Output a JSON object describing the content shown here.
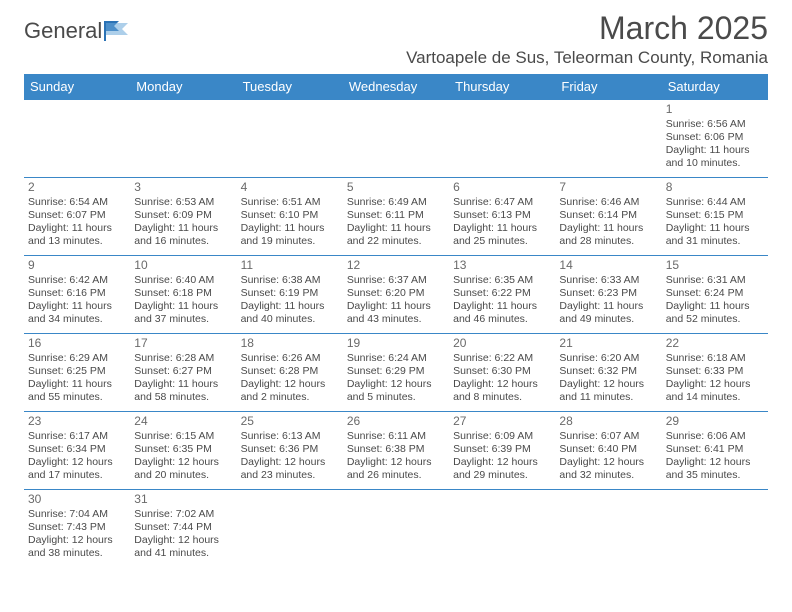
{
  "logo": {
    "text": "General",
    "brand_color": "#2a72b5"
  },
  "title": {
    "month": "March 2025",
    "location": "Vartoapele de Sus, Teleorman County, Romania"
  },
  "colors": {
    "header_bg": "#3a87c7",
    "header_fg": "#ffffff",
    "border": "#3a87c7",
    "text": "#4a4a4a"
  },
  "weekdays": [
    "Sunday",
    "Monday",
    "Tuesday",
    "Wednesday",
    "Thursday",
    "Friday",
    "Saturday"
  ],
  "weeks": [
    [
      null,
      null,
      null,
      null,
      null,
      null,
      {
        "d": "1",
        "sunrise": "6:56 AM",
        "sunset": "6:06 PM",
        "daylight": "11 hours and 10 minutes."
      }
    ],
    [
      {
        "d": "2",
        "sunrise": "6:54 AM",
        "sunset": "6:07 PM",
        "daylight": "11 hours and 13 minutes."
      },
      {
        "d": "3",
        "sunrise": "6:53 AM",
        "sunset": "6:09 PM",
        "daylight": "11 hours and 16 minutes."
      },
      {
        "d": "4",
        "sunrise": "6:51 AM",
        "sunset": "6:10 PM",
        "daylight": "11 hours and 19 minutes."
      },
      {
        "d": "5",
        "sunrise": "6:49 AM",
        "sunset": "6:11 PM",
        "daylight": "11 hours and 22 minutes."
      },
      {
        "d": "6",
        "sunrise": "6:47 AM",
        "sunset": "6:13 PM",
        "daylight": "11 hours and 25 minutes."
      },
      {
        "d": "7",
        "sunrise": "6:46 AM",
        "sunset": "6:14 PM",
        "daylight": "11 hours and 28 minutes."
      },
      {
        "d": "8",
        "sunrise": "6:44 AM",
        "sunset": "6:15 PM",
        "daylight": "11 hours and 31 minutes."
      }
    ],
    [
      {
        "d": "9",
        "sunrise": "6:42 AM",
        "sunset": "6:16 PM",
        "daylight": "11 hours and 34 minutes."
      },
      {
        "d": "10",
        "sunrise": "6:40 AM",
        "sunset": "6:18 PM",
        "daylight": "11 hours and 37 minutes."
      },
      {
        "d": "11",
        "sunrise": "6:38 AM",
        "sunset": "6:19 PM",
        "daylight": "11 hours and 40 minutes."
      },
      {
        "d": "12",
        "sunrise": "6:37 AM",
        "sunset": "6:20 PM",
        "daylight": "11 hours and 43 minutes."
      },
      {
        "d": "13",
        "sunrise": "6:35 AM",
        "sunset": "6:22 PM",
        "daylight": "11 hours and 46 minutes."
      },
      {
        "d": "14",
        "sunrise": "6:33 AM",
        "sunset": "6:23 PM",
        "daylight": "11 hours and 49 minutes."
      },
      {
        "d": "15",
        "sunrise": "6:31 AM",
        "sunset": "6:24 PM",
        "daylight": "11 hours and 52 minutes."
      }
    ],
    [
      {
        "d": "16",
        "sunrise": "6:29 AM",
        "sunset": "6:25 PM",
        "daylight": "11 hours and 55 minutes."
      },
      {
        "d": "17",
        "sunrise": "6:28 AM",
        "sunset": "6:27 PM",
        "daylight": "11 hours and 58 minutes."
      },
      {
        "d": "18",
        "sunrise": "6:26 AM",
        "sunset": "6:28 PM",
        "daylight": "12 hours and 2 minutes."
      },
      {
        "d": "19",
        "sunrise": "6:24 AM",
        "sunset": "6:29 PM",
        "daylight": "12 hours and 5 minutes."
      },
      {
        "d": "20",
        "sunrise": "6:22 AM",
        "sunset": "6:30 PM",
        "daylight": "12 hours and 8 minutes."
      },
      {
        "d": "21",
        "sunrise": "6:20 AM",
        "sunset": "6:32 PM",
        "daylight": "12 hours and 11 minutes."
      },
      {
        "d": "22",
        "sunrise": "6:18 AM",
        "sunset": "6:33 PM",
        "daylight": "12 hours and 14 minutes."
      }
    ],
    [
      {
        "d": "23",
        "sunrise": "6:17 AM",
        "sunset": "6:34 PM",
        "daylight": "12 hours and 17 minutes."
      },
      {
        "d": "24",
        "sunrise": "6:15 AM",
        "sunset": "6:35 PM",
        "daylight": "12 hours and 20 minutes."
      },
      {
        "d": "25",
        "sunrise": "6:13 AM",
        "sunset": "6:36 PM",
        "daylight": "12 hours and 23 minutes."
      },
      {
        "d": "26",
        "sunrise": "6:11 AM",
        "sunset": "6:38 PM",
        "daylight": "12 hours and 26 minutes."
      },
      {
        "d": "27",
        "sunrise": "6:09 AM",
        "sunset": "6:39 PM",
        "daylight": "12 hours and 29 minutes."
      },
      {
        "d": "28",
        "sunrise": "6:07 AM",
        "sunset": "6:40 PM",
        "daylight": "12 hours and 32 minutes."
      },
      {
        "d": "29",
        "sunrise": "6:06 AM",
        "sunset": "6:41 PM",
        "daylight": "12 hours and 35 minutes."
      }
    ],
    [
      {
        "d": "30",
        "sunrise": "7:04 AM",
        "sunset": "7:43 PM",
        "daylight": "12 hours and 38 minutes."
      },
      {
        "d": "31",
        "sunrise": "7:02 AM",
        "sunset": "7:44 PM",
        "daylight": "12 hours and 41 minutes."
      },
      null,
      null,
      null,
      null,
      null
    ]
  ],
  "labels": {
    "sunrise": "Sunrise: ",
    "sunset": "Sunset: ",
    "daylight": "Daylight: "
  }
}
